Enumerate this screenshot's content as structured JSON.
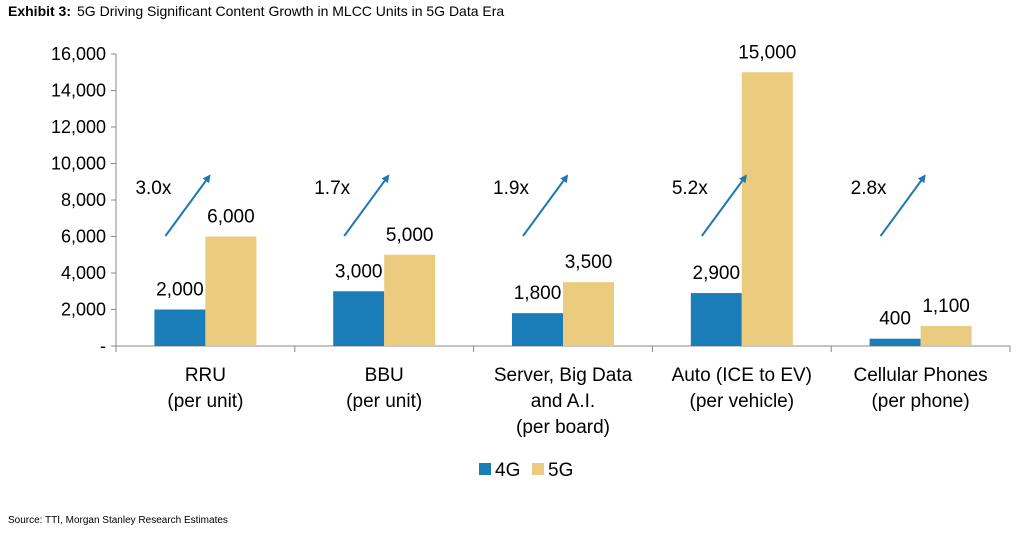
{
  "header": {
    "exhibit_label": "Exhibit 3:",
    "title_text": "5G Driving Significant Content Growth in MLCC Units in 5G Data Era"
  },
  "source_text": "Source: TTI, Morgan Stanley Research Estimates",
  "colors": {
    "4G": "#1B7DB8",
    "5G": "#EBCB7E",
    "arrow": "#1F78B4",
    "axis": "#888888"
  },
  "chart_data": {
    "type": "bar",
    "title": "5G Driving Significant Content Growth in MLCC Units in 5G Data Era",
    "categories": [
      [
        "RRU",
        "(per unit)"
      ],
      [
        "BBU",
        "(per unit)"
      ],
      [
        "Server, Big Data",
        "and A.I.",
        "(per board)"
      ],
      [
        "Auto (ICE to EV)",
        "(per vehicle)"
      ],
      [
        "Cellular Phones",
        "(per phone)"
      ]
    ],
    "series": [
      {
        "name": "4G",
        "values": [
          2000,
          3000,
          1800,
          2900,
          400
        ],
        "labels": [
          "2,000",
          "3,000",
          "1,800",
          "2,900",
          "400"
        ]
      },
      {
        "name": "5G",
        "values": [
          6000,
          5000,
          3500,
          15000,
          1100
        ],
        "labels": [
          "6,000",
          "5,000",
          "3,500",
          "15,000",
          "1,100"
        ]
      }
    ],
    "multipliers": [
      "3.0x",
      "1.7x",
      "1.9x",
      "5.2x",
      "2.8x"
    ],
    "yticks": [
      0,
      2000,
      4000,
      6000,
      8000,
      10000,
      12000,
      14000,
      16000
    ],
    "ytick_labels": [
      "-",
      "2,000",
      "4,000",
      "6,000",
      "8,000",
      "10,000",
      "12,000",
      "14,000",
      "16,000"
    ],
    "ylim": [
      0,
      16000
    ],
    "grid": false,
    "legend_position": "bottom-center"
  }
}
